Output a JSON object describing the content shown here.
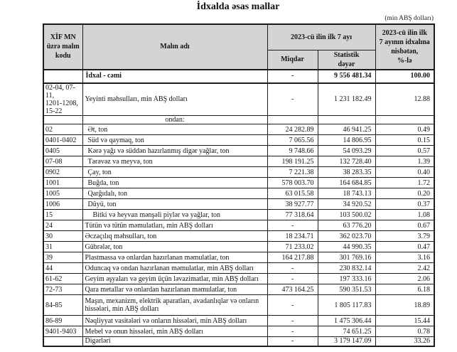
{
  "page": {
    "title": "İdxalda əsas mallar",
    "unit_note": "(min ABŞ dolları)"
  },
  "table": {
    "header": {
      "col_code": "XİF MN\nüzrə malın\nkodu",
      "col_name": "Malın adı",
      "col_period": "2023-cü ilin ilk 7 ayı",
      "col_qty": "Miqdar",
      "col_value": "Statistik\ndəyər",
      "col_share": "2023-cü ilin ilk\n7 ayının idxalına\nnisbətən,\n%-lə"
    },
    "rows": [
      {
        "code": "",
        "name": "İdxal - cəmi",
        "qty": "-",
        "value": "9 556 481.34",
        "share": "100.00",
        "bold": true,
        "h": 19,
        "indent": 4
      },
      {
        "code": "02-04, 07-11,\n1201-1208,\n15-22",
        "name": "Yeyinti məhsulları, min ABŞ dolları",
        "qty": "-",
        "value": "1 231 182.49",
        "share": "12.88",
        "h": 42,
        "indent": 3
      },
      {
        "code": "",
        "name": "ondan:",
        "qty": "",
        "value": "",
        "share": "",
        "center": true,
        "h": 10
      },
      {
        "code": "02",
        "name": "Ət, ton",
        "qty": "24 282.89",
        "value": "46 941.25",
        "share": "0.49",
        "h": 15,
        "indent": 7
      },
      {
        "code": "0401-0402",
        "name": "Süd və qaymaq, ton",
        "qty": "7 065.56",
        "value": "14 806.95",
        "share": "0.15",
        "h": 15,
        "indent": 7
      },
      {
        "code": "0405",
        "name": "Kərə yağı və süddən hazırlanmış digər yağlar, ton",
        "qty": "9 748.66",
        "value": "54 093.29",
        "share": "0.57",
        "h": 15,
        "indent": 7
      },
      {
        "code": "07-08",
        "name": "Tərəvəz və meyvə, ton",
        "qty": "198 191.25",
        "value": "132 728.40",
        "share": "1.39",
        "h": 15,
        "indent": 7
      },
      {
        "code": "0902",
        "name": "Çay, ton",
        "qty": "7 221.38",
        "value": "38 283.35",
        "share": "0.40",
        "h": 15,
        "indent": 7
      },
      {
        "code": "1001",
        "name": "Buğda, ton",
        "qty": "578 003.70",
        "value": "164 684.85",
        "share": "1.72",
        "h": 15,
        "indent": 7
      },
      {
        "code": "1005",
        "name": "Qarğıdalı, ton",
        "qty": "63 015.58",
        "value": "18 743.13",
        "share": "0.20",
        "h": 15,
        "indent": 7
      },
      {
        "code": "1006",
        "name": "Düyü, ton",
        "qty": "38 927.77",
        "value": "34 920.52",
        "share": "0.37",
        "h": 15,
        "indent": 7
      },
      {
        "code": "15",
        "name": "Bitki və heyvan mənşəli piylər və yağlar, ton",
        "qty": "77 318.64",
        "value": "103 500.02",
        "share": "1.08",
        "h": 15,
        "indent": 14
      },
      {
        "code": "24",
        "name": "Tütün və tütün məmulatları, min ABŞ dolları",
        "qty": "-",
        "value": "63 776.20",
        "share": "0.67",
        "h": 15,
        "indent": 3
      },
      {
        "code": "30",
        "name": "Əczaçılıq məhsulları, ton",
        "qty": "18 234.71",
        "value": "362 023.70",
        "share": "3.79",
        "h": 15,
        "indent": 3
      },
      {
        "code": "31",
        "name": "Gübrələr, ton",
        "qty": "71 233.02",
        "value": "44 990.35",
        "share": "0.47",
        "h": 15,
        "indent": 3
      },
      {
        "code": "39",
        "name": "Plastmassa və onlardan hazırlanan məmulatlar, ton",
        "qty": "164 217.88",
        "value": "301 769.16",
        "share": "3.16",
        "h": 15,
        "indent": 3
      },
      {
        "code": "44",
        "name": "Oduncaq və ondan hazırlanan məmulatlar, min ABŞ dolları",
        "qty": "-",
        "value": "230 832.14",
        "share": "2.42",
        "h": 15,
        "indent": 3
      },
      {
        "code": "61-62",
        "name": "Geyim əşyaları və geyim üçün ləvazimatlar, min ABŞ dolları",
        "qty": "-",
        "value": "197 333.16",
        "share": "2.06",
        "h": 15,
        "indent": 3
      },
      {
        "code": "72-73",
        "name": "Qara metallar və onlardan hazırlanan məmulatlar, ton",
        "qty": "473 164.25",
        "value": "590 351.53",
        "share": "6.18",
        "h": 15,
        "indent": 3
      },
      {
        "code": "84-85",
        "name": "Maşın, mexanizm, elektrik aparatları, avadanlıqlar və onların hissələri, min ABŞ dolları",
        "qty": "-",
        "value": "1 805 117.83",
        "share": "18.89",
        "h": 29,
        "indent": 3,
        "wrap": true
      },
      {
        "code": "86-89",
        "name": "Nəqliyyat vasitələri və onların hissələri, min ABŞ dolları",
        "qty": "-",
        "value": "1 475 306.44",
        "share": "15.44",
        "h": 15,
        "indent": 3
      },
      {
        "code": "9401-9403",
        "name": "Mebel və onun hissələri, min ABŞ dolları",
        "qty": "-",
        "value": "74 651.25",
        "share": "0.78",
        "h": 15,
        "indent": 3
      },
      {
        "code": "",
        "name": "Digərləri",
        "qty": "-",
        "value": "3 179 147.09",
        "share": "33.26",
        "h": 12,
        "indent": 3
      }
    ]
  }
}
